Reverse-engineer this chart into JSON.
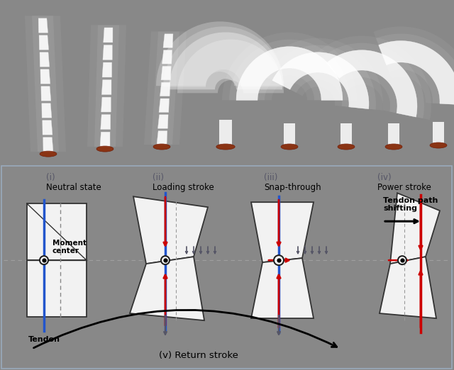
{
  "top_bg": "#4a5a6a",
  "bottom_bg": "#c5d5e5",
  "fig_width": 6.4,
  "fig_height": 5.22,
  "panel_labels": [
    "(i)",
    "(ii)",
    "(iii)",
    "(iv)"
  ],
  "panel_titles": [
    "Neutral state",
    "Loading stroke",
    "Snap-through",
    "Power stroke"
  ],
  "tendon_color": "#2255cc",
  "red_arrow_color": "#cc0000",
  "gray_arrow_color": "#555566",
  "joint_fill": "#f2f2f2",
  "joint_edge": "#333333",
  "return_stroke_label": "(v) Return stroke",
  "tendon_label": "Tendon",
  "moment_label": "Moment\ncenter",
  "tendon_path_label": "Tendon path\nshifting"
}
